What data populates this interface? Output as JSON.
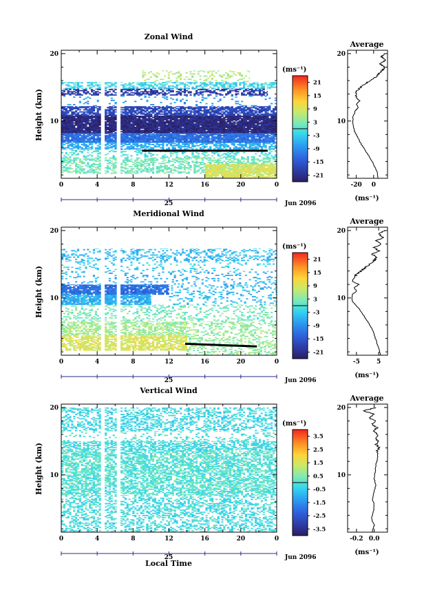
{
  "figure": {
    "date_label": "Jun 2096",
    "day_label": "25",
    "xlabel_bottom": "Local Time",
    "profile_title": "Average",
    "colorbar_unit": "(ms⁻¹)",
    "profile_unit": "(ms⁻¹)"
  },
  "chart_data": [
    {
      "id": "zonal",
      "type": "heatmap",
      "title": "Zonal Wind",
      "ylabel": "Height (km)",
      "x_ticks": [
        "0",
        "4",
        "8",
        "12",
        "16",
        "20",
        "0"
      ],
      "x_range": [
        0,
        24
      ],
      "y_ticks": [
        "20",
        "10"
      ],
      "y_range": [
        1.5,
        20.5
      ],
      "colorbar_ticks": [
        "21",
        "15",
        "9",
        "3",
        "-3",
        "-9",
        "-15",
        "-21"
      ],
      "colorbar_range": [
        -24,
        24
      ],
      "gaps_local_time": [
        4.6,
        6.4
      ],
      "layers": [
        {
          "h0": 15.8,
          "h1": 17.5,
          "t0": 9,
          "t1": 21,
          "v": 6,
          "d": 0.25
        },
        {
          "h0": 14.8,
          "h1": 15.8,
          "t0": 0,
          "t1": 24,
          "v": -2,
          "d": 0.5
        },
        {
          "h0": 13.8,
          "h1": 14.8,
          "t0": 0,
          "t1": 23,
          "v": -19,
          "d": 0.55
        },
        {
          "h0": 12.2,
          "h1": 13.8,
          "t0": 0,
          "t1": 24,
          "v": -8,
          "d": 0.1
        },
        {
          "h0": 10.8,
          "h1": 12.2,
          "t0": 0,
          "t1": 24,
          "v": -17,
          "d": 0.75
        },
        {
          "h0": 8.2,
          "h1": 10.8,
          "t0": 0,
          "t1": 24,
          "v": -22,
          "d": 0.96
        },
        {
          "h0": 6.8,
          "h1": 8.2,
          "t0": 0,
          "t1": 24,
          "v": -12,
          "d": 0.92
        },
        {
          "h0": 5.8,
          "h1": 6.8,
          "t0": 0,
          "t1": 24,
          "v": -6,
          "d": 0.6
        },
        {
          "h0": 4.6,
          "h1": 5.8,
          "t0": 0,
          "t1": 24,
          "v": -1,
          "d": 0.3
        },
        {
          "h0": 2.2,
          "h1": 4.6,
          "t0": 0,
          "t1": 24,
          "v": 2,
          "d": 0.5
        },
        {
          "h0": 1.5,
          "h1": 3.6,
          "t0": 16,
          "t1": 24,
          "v": 9,
          "d": 0.8
        }
      ],
      "line_segment": {
        "t0": 9,
        "t1": 23,
        "h0": 5.6,
        "h1": 5.6
      },
      "profile": {
        "title": "Average",
        "x_ticks": [
          "-20",
          "0"
        ],
        "x_range": [
          -30,
          16
        ],
        "heights": [
          1.5,
          2.5,
          3.5,
          4.5,
          5.5,
          6.5,
          7.5,
          8.5,
          9.5,
          10.5,
          11.5,
          12.0,
          12.5,
          13.0,
          13.5,
          14.0,
          14.5,
          15.0,
          15.5,
          16.0,
          16.5,
          17.0,
          17.5,
          18.0,
          18.5,
          19.0,
          19.5,
          20.0
        ],
        "values": [
          5,
          4,
          0,
          -4,
          -9,
          -14,
          -18,
          -22,
          -24,
          -24,
          -21,
          -18,
          -20,
          -16,
          -20,
          -21,
          -19,
          -15,
          -10,
          -4,
          2,
          6,
          10,
          12,
          8,
          14,
          9,
          12
        ]
      }
    },
    {
      "id": "meridional",
      "type": "heatmap",
      "title": "Meridional Wind",
      "ylabel": "Height (km)",
      "x_ticks": [
        "0",
        "4",
        "8",
        "12",
        "16",
        "20",
        "0"
      ],
      "x_range": [
        0,
        24
      ],
      "y_ticks": [
        "20",
        "10"
      ],
      "y_range": [
        1.5,
        20.5
      ],
      "colorbar_ticks": [
        "21",
        "15",
        "9",
        "3",
        "-3",
        "-9",
        "-15",
        "-21"
      ],
      "colorbar_range": [
        -24,
        24
      ],
      "gaps_local_time": [
        4.6,
        6.4
      ],
      "layers": [
        {
          "h0": 15.5,
          "h1": 17.3,
          "t0": 0,
          "t1": 24,
          "v": -5,
          "d": 0.3
        },
        {
          "h0": 14.0,
          "h1": 15.5,
          "t0": 0,
          "t1": 24,
          "v": -3,
          "d": 0.12
        },
        {
          "h0": 12.0,
          "h1": 14.0,
          "t0": 0,
          "t1": 24,
          "v": -6,
          "d": 0.15
        },
        {
          "h0": 10.5,
          "h1": 12.0,
          "t0": 0,
          "t1": 12,
          "v": -12,
          "d": 0.85
        },
        {
          "h0": 9.0,
          "h1": 10.5,
          "t0": 0,
          "t1": 10,
          "v": -6,
          "d": 0.85
        },
        {
          "h0": 9.0,
          "h1": 12.0,
          "t0": 12,
          "t1": 24,
          "v": -5,
          "d": 0.18
        },
        {
          "h0": 6.5,
          "h1": 9.0,
          "t0": 0,
          "t1": 24,
          "v": 2,
          "d": 0.25
        },
        {
          "h0": 4.5,
          "h1": 6.5,
          "t0": 0,
          "t1": 14,
          "v": 5,
          "d": 0.55
        },
        {
          "h0": 2.2,
          "h1": 4.5,
          "t0": 0,
          "t1": 14,
          "v": 9,
          "d": 0.7
        },
        {
          "h0": 1.5,
          "h1": 6.5,
          "t0": 14,
          "t1": 24,
          "v": 4,
          "d": 0.3
        }
      ],
      "line_segment": {
        "t0": 13.8,
        "t1": 21.8,
        "h0": 3.2,
        "h1": 2.8
      },
      "profile": {
        "title": "Average",
        "x_ticks": [
          "-5",
          "5"
        ],
        "x_range": [
          -9,
          9
        ],
        "heights": [
          1.5,
          2.5,
          3.5,
          4.5,
          5.5,
          6.5,
          7.5,
          8.5,
          9.5,
          10.5,
          11.0,
          11.5,
          12.0,
          12.5,
          13.0,
          13.5,
          14.0,
          14.5,
          15.0,
          15.5,
          16.0,
          16.5,
          17.0,
          17.5,
          18.0,
          18.5,
          19.0,
          19.5,
          20.0
        ],
        "values": [
          6,
          5,
          4,
          3,
          2,
          0,
          -2,
          -4,
          -7,
          -7,
          -5,
          -6,
          -4,
          -7,
          -6,
          -5,
          -3,
          -1,
          1,
          3,
          4,
          2,
          5,
          3,
          6,
          4,
          7,
          5,
          8
        ]
      }
    },
    {
      "id": "vertical",
      "type": "heatmap",
      "title": "Vertical Wind",
      "ylabel": "Height (km)",
      "xlabel": "Local Time",
      "x_ticks": [
        "0",
        "4",
        "8",
        "12",
        "16",
        "20",
        "0"
      ],
      "x_range": [
        0,
        24
      ],
      "y_ticks": [
        "20",
        "10"
      ],
      "y_range": [
        1.5,
        20.5
      ],
      "colorbar_ticks": [
        "3.5",
        "2.5",
        "1.5",
        "0.5",
        "-0.5",
        "-1.5",
        "-2.5",
        "-3.5"
      ],
      "colorbar_range": [
        -4,
        4
      ],
      "gaps_local_time": [
        4.6,
        6.4
      ],
      "layers": [
        {
          "h0": 16.5,
          "h1": 20.0,
          "t0": 0,
          "t1": 24,
          "v": -0.3,
          "d": 0.4
        },
        {
          "h0": 15.0,
          "h1": 16.5,
          "t0": 0,
          "t1": 24,
          "v": -0.1,
          "d": 0.15
        },
        {
          "h0": 13.5,
          "h1": 15.0,
          "t0": 0,
          "t1": 24,
          "v": -0.2,
          "d": 0.55
        },
        {
          "h0": 7.0,
          "h1": 13.5,
          "t0": 0,
          "t1": 24,
          "v": 0.0,
          "d": 0.6
        },
        {
          "h0": 1.5,
          "h1": 7.0,
          "t0": 0,
          "t1": 24,
          "v": -0.2,
          "d": 0.38
        }
      ],
      "profile": {
        "title": "Average",
        "x_ticks": [
          "-0.2",
          "0.0"
        ],
        "x_range": [
          -0.3,
          0.15
        ],
        "heights": [
          1.5,
          2.5,
          3.5,
          4.5,
          5.5,
          6.5,
          7.5,
          8.5,
          9.5,
          10.5,
          11.5,
          12.5,
          13.5,
          14.0,
          14.5,
          15.0,
          15.5,
          16.0,
          16.5,
          17.0,
          17.5,
          18.0,
          18.5,
          19.0,
          19.5,
          20.0
        ],
        "values": [
          -0.02,
          0.0,
          -0.03,
          -0.01,
          0.0,
          -0.02,
          0.0,
          0.02,
          0.0,
          0.01,
          0.02,
          0.04,
          0.03,
          0.06,
          0.02,
          0.05,
          0.01,
          0.04,
          0.0,
          0.03,
          -0.02,
          0.01,
          -0.06,
          0.0,
          -0.12,
          0.02
        ]
      }
    }
  ]
}
